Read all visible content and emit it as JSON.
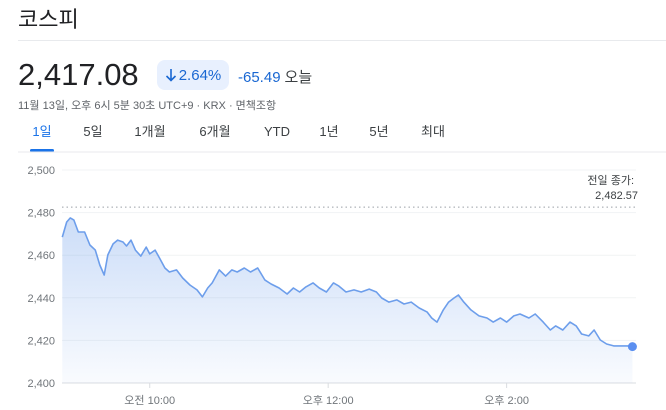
{
  "header": {
    "title": "코스피",
    "price": "2,417.08",
    "change_percent": "2.64%",
    "change": "-65.49",
    "change_period": "오늘",
    "timestamp": "11월 13일, 오후 6시 5분 30초 UTC+9 · KRX · 면책조항"
  },
  "tabs": [
    "1일",
    "5일",
    "1개월",
    "6개월",
    "YTD",
    "1년",
    "5년",
    "최대"
  ],
  "selected_tab": 0,
  "chart_data": {
    "type": "line",
    "x": [
      9.02,
      9.07,
      9.11,
      9.15,
      9.2,
      9.27,
      9.33,
      9.39,
      9.44,
      9.49,
      9.53,
      9.59,
      9.64,
      9.7,
      9.74,
      9.79,
      9.84,
      9.9,
      9.96,
      10,
      10.06,
      10.11,
      10.17,
      10.22,
      10.3,
      10.37,
      10.45,
      10.53,
      10.59,
      10.65,
      10.7,
      10.78,
      10.85,
      10.92,
      10.98,
      11.06,
      11.13,
      11.21,
      11.29,
      11.36,
      11.45,
      11.54,
      11.61,
      11.68,
      11.75,
      11.83,
      11.9,
      11.98,
      12.06,
      12.12,
      12.2,
      12.29,
      12.37,
      12.46,
      12.54,
      12.6,
      12.68,
      12.77,
      12.85,
      12.93,
      13.02,
      13.11,
      13.16,
      13.22,
      13.29,
      13.35,
      13.41,
      13.46,
      13.52,
      13.6,
      13.69,
      13.78,
      13.85,
      13.93,
      14,
      14.08,
      14.15,
      14.25,
      14.32,
      14.41,
      14.49,
      14.55,
      14.63,
      14.71,
      14.78,
      14.84,
      14.92,
      14.98,
      15.05,
      15.12,
      15.2,
      15.27,
      15.36,
      15.41
    ],
    "series": [
      {
        "name": "코스피",
        "color": "#6d9eeb",
        "values": [
          2468.5,
          2475.6,
          2477.5,
          2476.5,
          2470.9,
          2470.9,
          2464.8,
          2462.4,
          2455.4,
          2450.7,
          2460.1,
          2465.3,
          2467.1,
          2466.2,
          2464.3,
          2467.1,
          2462.4,
          2459.6,
          2463.8,
          2460.6,
          2462.4,
          2458.7,
          2454.0,
          2452.1,
          2453.1,
          2449.3,
          2446.0,
          2443.7,
          2440.4,
          2444.6,
          2447.0,
          2453.1,
          2450.2,
          2453.1,
          2452.1,
          2454.0,
          2452.1,
          2454.0,
          2448.4,
          2446.5,
          2444.6,
          2441.8,
          2444.6,
          2442.7,
          2445.1,
          2447.0,
          2444.6,
          2442.7,
          2447.0,
          2445.5,
          2442.7,
          2443.7,
          2442.7,
          2444.1,
          2442.7,
          2439.9,
          2438.0,
          2439.0,
          2437.1,
          2438.0,
          2435.2,
          2433.3,
          2430.5,
          2428.6,
          2434.3,
          2438.0,
          2439.9,
          2441.3,
          2438.0,
          2434.3,
          2431.5,
          2430.5,
          2428.6,
          2430.5,
          2428.6,
          2431.5,
          2432.4,
          2430.5,
          2432.4,
          2428.6,
          2424.9,
          2426.8,
          2424.9,
          2428.6,
          2426.8,
          2423.0,
          2422.1,
          2424.9,
          2420.2,
          2418.3,
          2417.4,
          2417.4,
          2417.4,
          2417.08
        ]
      }
    ],
    "xlim": [
      9,
      15.45
    ],
    "xticks": [
      {
        "value": 10,
        "label": "오전 10:00"
      },
      {
        "value": 12,
        "label": "오후 12:00"
      },
      {
        "value": 14,
        "label": "오후 2:00"
      }
    ],
    "ylim": [
      2400,
      2500
    ],
    "yticks": [
      {
        "value": 2400,
        "label": "2,400"
      },
      {
        "value": 2420,
        "label": "2,420"
      },
      {
        "value": 2440,
        "label": "2,440"
      },
      {
        "value": 2460,
        "label": "2,460"
      },
      {
        "value": 2480,
        "label": "2,480"
      },
      {
        "value": 2500,
        "label": "2,500"
      }
    ],
    "grid": true,
    "reference_line": {
      "label": "전일 종가:",
      "value": 2482.57,
      "value_label": "2,482.57"
    }
  }
}
